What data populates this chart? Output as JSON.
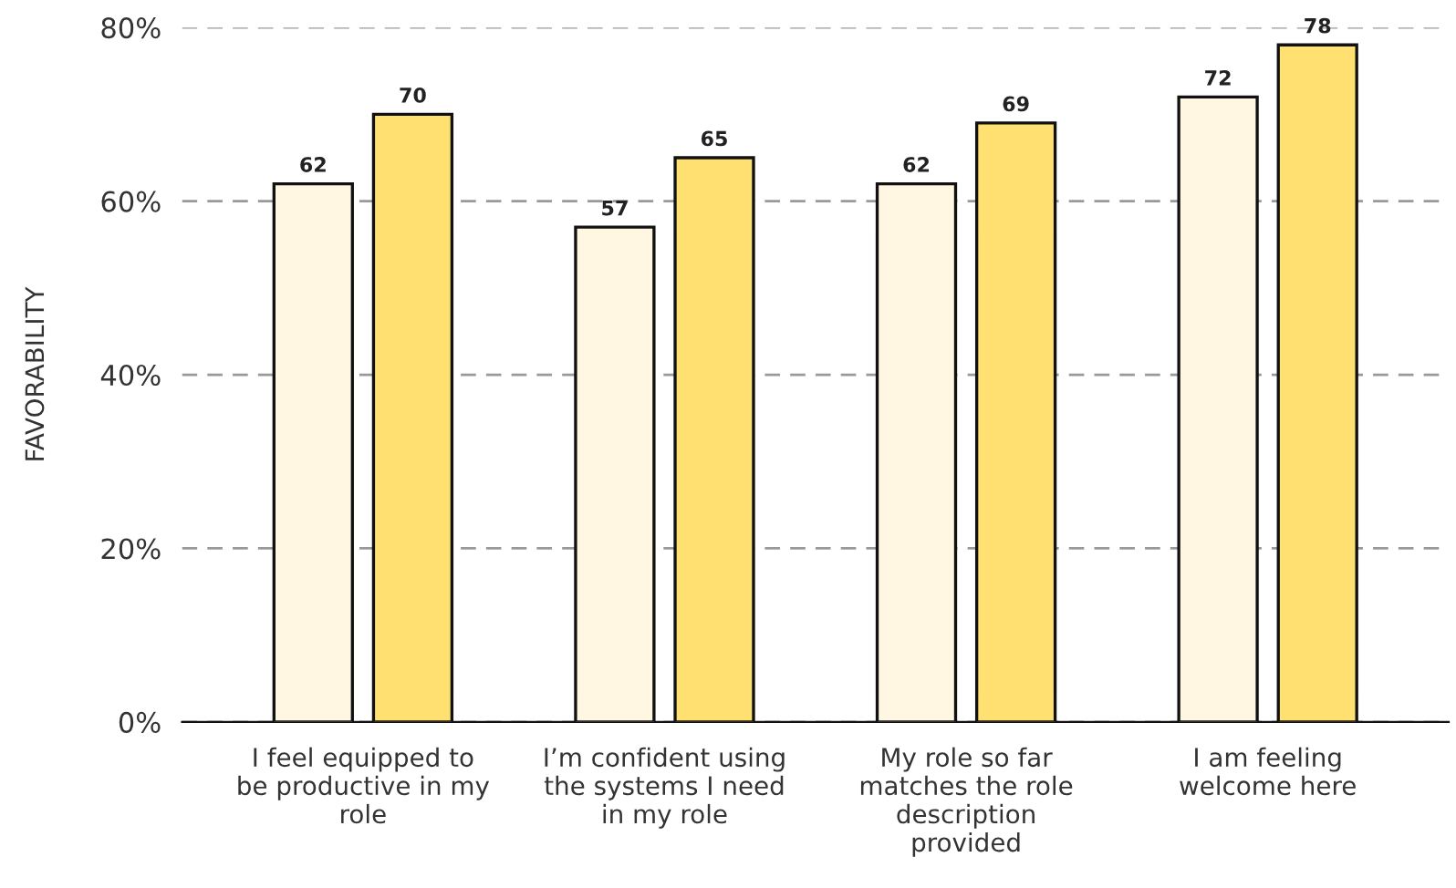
{
  "chart_data": {
    "type": "bar",
    "ylabel": "FAVORABILITY",
    "categories": [
      "I feel equipped to\nbe productive in my\nrole",
      "I’m confident using\nthe systems I need\nin my role",
      "My role so far\nmatches the role\ndescription\nprovided",
      "I am feeling\nwelcome here"
    ],
    "series": [
      {
        "color": "#fff7e1",
        "values": [
          62,
          57,
          62,
          72
        ]
      },
      {
        "color": "#ffe070",
        "values": [
          70,
          65,
          69,
          78
        ]
      }
    ],
    "ylim": [
      0,
      80
    ],
    "yticks": [
      {
        "value": 0,
        "label": "0%"
      },
      {
        "value": 20,
        "label": "20%"
      },
      {
        "value": 40,
        "label": "40%"
      },
      {
        "value": 60,
        "label": "60%"
      },
      {
        "value": 80,
        "label": "80%"
      }
    ],
    "grid": "y",
    "data_labels": true
  }
}
